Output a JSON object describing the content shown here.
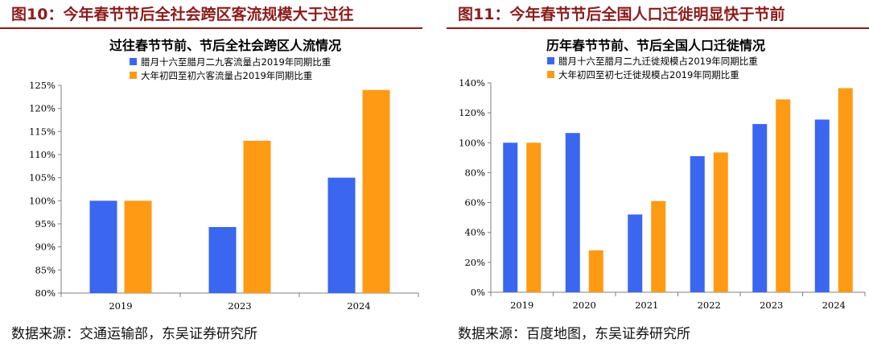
{
  "figures": [
    {
      "figure_title": "图10：今年春节节后全社会跨区客流规模大于过往",
      "source": "数据来源：交通运输部，东吴证券研究所"
    },
    {
      "figure_title": "图11：今年春节节后全国人口迁徙明显快于节前",
      "source": "数据来源：百度地图，东吴证券研究所"
    }
  ],
  "colors": {
    "blue": "#3a66f0",
    "orange": "#ff9a14",
    "title_red": "#8c1c1c",
    "axis": "#7f7f7f"
  },
  "chart_data": [
    {
      "type": "bar",
      "title": "过往春节节前、节后全社会跨区人流情况",
      "categories": [
        "2019",
        "2023",
        "2024"
      ],
      "series": [
        {
          "name": "腊月十六至腊月二九客流量占2019年同期比重",
          "color": "#3a66f0",
          "values": [
            100,
            94.3,
            105
          ]
        },
        {
          "name": "大年初四至初六客流量占2019年同期比重",
          "color": "#ff9a14",
          "values": [
            100,
            113,
            124
          ]
        }
      ],
      "ylim": [
        80,
        125
      ],
      "ystep": 5,
      "ytick_labels": [
        "80%",
        "85%",
        "90%",
        "95%",
        "100%",
        "105%",
        "110%",
        "115%",
        "120%",
        "125%"
      ],
      "xlabel": "",
      "ylabel": ""
    },
    {
      "type": "bar",
      "title": "历年春节节前、节后全国人口迁徙情况",
      "categories": [
        "2019",
        "2020",
        "2021",
        "2022",
        "2023",
        "2024"
      ],
      "series": [
        {
          "name": "腊月十六至腊月二九迁徙规模占2019年同期比重",
          "color": "#3a66f0",
          "values": [
            100,
            106.5,
            52,
            91,
            112.5,
            115.5
          ]
        },
        {
          "name": "大年初四至初七迁徙规模占2019年同期比重",
          "color": "#ff9a14",
          "values": [
            100,
            28,
            61,
            93.5,
            129,
            136.5
          ]
        }
      ],
      "ylim": [
        0,
        140
      ],
      "ystep": 20,
      "ytick_labels": [
        "0%",
        "20%",
        "40%",
        "60%",
        "80%",
        "100%",
        "120%",
        "140%"
      ],
      "xlabel": "",
      "ylabel": ""
    }
  ]
}
